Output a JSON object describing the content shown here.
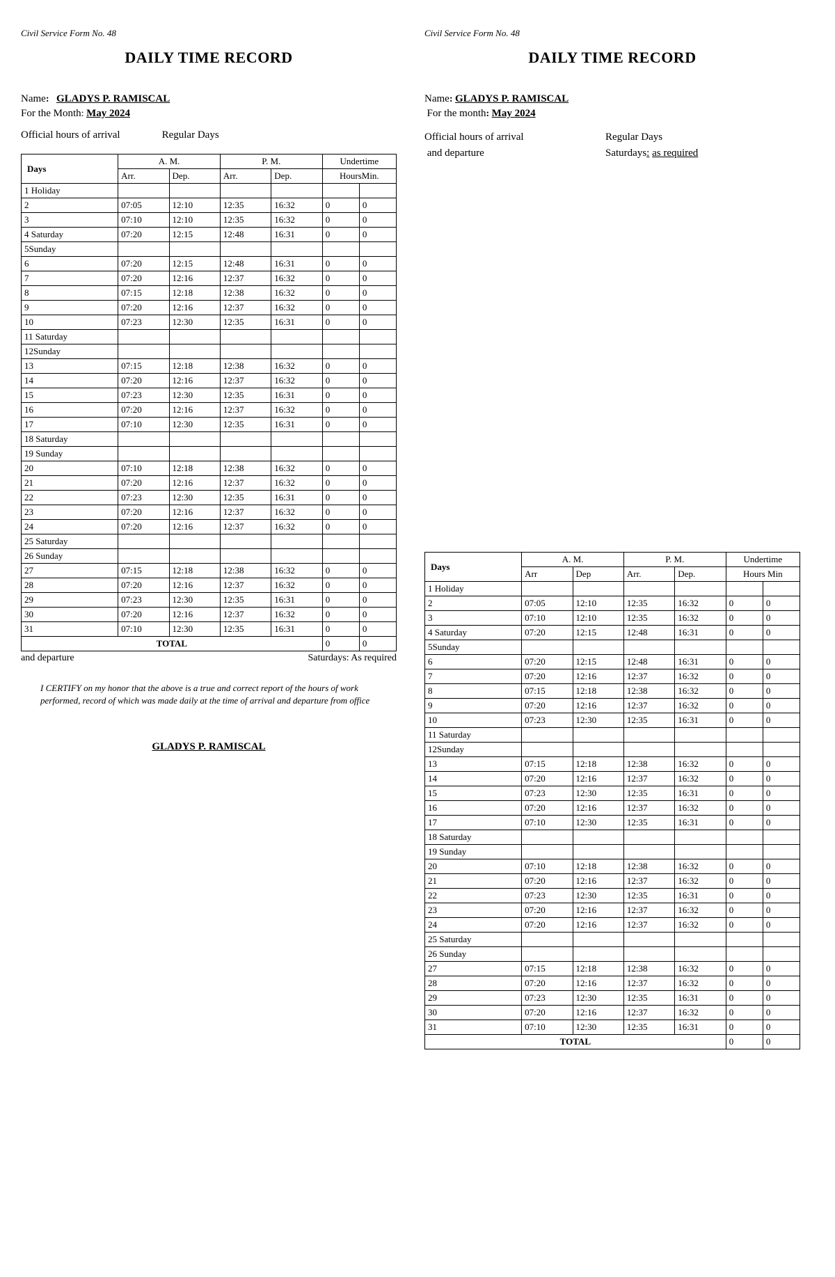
{
  "form_no": "Civil Service Form No. 48",
  "title": "DAILY TIME RECORD",
  "name_label": "Name",
  "name_value": "GLADYS P. RAMISCAL",
  "month_label_left": "For the Month",
  "month_label_right": "For the month",
  "month_value": "May 2024",
  "official_hours_left": "Official hours of arrival",
  "official_hours_right_l1": "Official hours of arrival",
  "official_hours_right_l2": "and departure",
  "regular_days": "Regular Days",
  "saturdays_label": "Saturdays",
  "saturdays_value": "as required",
  "and_departure": "and departure",
  "saturdays_as_required": "Saturdays: As required",
  "certify_text": "I CERTIFY on my honor that the above is a true and correct report of the hours of work performed, record of which was made daily at the time of arrival and departure from office",
  "signature_name": "GLADYS P. RAMISCAL",
  "headers": {
    "days": "Days",
    "am": "A. M.",
    "pm": "P. M.",
    "undertime": "Undertime",
    "arr": "Arr.",
    "dep": "Dep.",
    "arr2": "Arr",
    "dep2": "Dep",
    "hoursmin": "Hours Min",
    "hoursmin2": "HoursMin.",
    "total": "TOTAL"
  },
  "total_hours": "0",
  "total_min": "0",
  "rows": [
    {
      "day": "1 Holiday",
      "am_arr": "",
      "am_dep": "",
      "pm_arr": "",
      "pm_dep": "",
      "uh": "",
      "um": ""
    },
    {
      "day": "2",
      "am_arr": "07:05",
      "am_dep": "12:10",
      "pm_arr": "12:35",
      "pm_dep": "16:32",
      "uh": "0",
      "um": "0"
    },
    {
      "day": "3",
      "am_arr": "07:10",
      "am_dep": "12:10",
      "pm_arr": "12:35",
      "pm_dep": "16:32",
      "uh": "0",
      "um": "0"
    },
    {
      "day": "4 Saturday",
      "am_arr": "07:20",
      "am_dep": "12:15",
      "pm_arr": "12:48",
      "pm_dep": "16:31",
      "uh": "0",
      "um": "0"
    },
    {
      "day": "5Sunday",
      "am_arr": "",
      "am_dep": "",
      "pm_arr": "",
      "pm_dep": "",
      "uh": "",
      "um": ""
    },
    {
      "day": "6",
      "am_arr": "07:20",
      "am_dep": "12:15",
      "pm_arr": "12:48",
      "pm_dep": "16:31",
      "uh": "0",
      "um": "0"
    },
    {
      "day": "7",
      "am_arr": "07:20",
      "am_dep": "12:16",
      "pm_arr": "12:37",
      "pm_dep": "16:32",
      "uh": "0",
      "um": "0"
    },
    {
      "day": "8",
      "am_arr": "07:15",
      "am_dep": "12:18",
      "pm_arr": "12:38",
      "pm_dep": "16:32",
      "uh": "0",
      "um": "0"
    },
    {
      "day": "9",
      "am_arr": "07:20",
      "am_dep": "12:16",
      "pm_arr": "12:37",
      "pm_dep": "16:32",
      "uh": "0",
      "um": "0"
    },
    {
      "day": "10",
      "am_arr": "07:23",
      "am_dep": "12:30",
      "pm_arr": "12:35",
      "pm_dep": "16:31",
      "uh": "0",
      "um": "0"
    },
    {
      "day": "11 Saturday",
      "am_arr": "",
      "am_dep": "",
      "pm_arr": "",
      "pm_dep": "",
      "uh": "",
      "um": ""
    },
    {
      "day": "12Sunday",
      "am_arr": "",
      "am_dep": "",
      "pm_arr": "",
      "pm_dep": "",
      "uh": "",
      "um": ""
    },
    {
      "day": "13",
      "am_arr": "07:15",
      "am_dep": "12:18",
      "pm_arr": "12:38",
      "pm_dep": "16:32",
      "uh": "0",
      "um": "0"
    },
    {
      "day": "14",
      "am_arr": "07:20",
      "am_dep": "12:16",
      "pm_arr": "12:37",
      "pm_dep": "16:32",
      "uh": "0",
      "um": "0"
    },
    {
      "day": "15",
      "am_arr": "07:23",
      "am_dep": "12:30",
      "pm_arr": "12:35",
      "pm_dep": "16:31",
      "uh": "0",
      "um": "0"
    },
    {
      "day": "16",
      "am_arr": "07:20",
      "am_dep": "12:16",
      "pm_arr": "12:37",
      "pm_dep": "16:32",
      "uh": "0",
      "um": "0"
    },
    {
      "day": "17",
      "am_arr": "07:10",
      "am_dep": "12:30",
      "pm_arr": "12:35",
      "pm_dep": "16:31",
      "uh": "0",
      "um": "0"
    },
    {
      "day": "18 Saturday",
      "am_arr": "",
      "am_dep": "",
      "pm_arr": "",
      "pm_dep": "",
      "uh": "",
      "um": ""
    },
    {
      "day": "19 Sunday",
      "am_arr": "",
      "am_dep": "",
      "pm_arr": "",
      "pm_dep": "",
      "uh": "",
      "um": ""
    },
    {
      "day": "20",
      "am_arr": "07:10",
      "am_dep": "12:18",
      "pm_arr": "12:38",
      "pm_dep": "16:32",
      "uh": "0",
      "um": "0"
    },
    {
      "day": "21",
      "am_arr": "07:20",
      "am_dep": "12:16",
      "pm_arr": "12:37",
      "pm_dep": "16:32",
      "uh": "0",
      "um": "0"
    },
    {
      "day": "22",
      "am_arr": "07:23",
      "am_dep": "12:30",
      "pm_arr": "12:35",
      "pm_dep": "16:31",
      "uh": "0",
      "um": "0"
    },
    {
      "day": "23",
      "am_arr": "07:20",
      "am_dep": "12:16",
      "pm_arr": "12:37",
      "pm_dep": "16:32",
      "uh": "0",
      "um": "0"
    },
    {
      "day": "24",
      "am_arr": "07:20",
      "am_dep": "12:16",
      "pm_arr": "12:37",
      "pm_dep": "16:32",
      "uh": "0",
      "um": "0"
    },
    {
      "day": "25 Saturday",
      "am_arr": "",
      "am_dep": "",
      "pm_arr": "",
      "pm_dep": "",
      "uh": "",
      "um": ""
    },
    {
      "day": "26 Sunday",
      "am_arr": "",
      "am_dep": "",
      "pm_arr": "",
      "pm_dep": "",
      "uh": "",
      "um": ""
    },
    {
      "day": "27",
      "am_arr": "07:15",
      "am_dep": "12:18",
      "pm_arr": "12:38",
      "pm_dep": "16:32",
      "uh": "0",
      "um": "0"
    },
    {
      "day": "28",
      "am_arr": "07:20",
      "am_dep": "12:16",
      "pm_arr": "12:37",
      "pm_dep": "16:32",
      "uh": "0",
      "um": "0"
    },
    {
      "day": "29",
      "am_arr": "07:23",
      "am_dep": "12:30",
      "pm_arr": "12:35",
      "pm_dep": "16:31",
      "uh": "0",
      "um": "0"
    },
    {
      "day": "30",
      "am_arr": "07:20",
      "am_dep": "12:16",
      "pm_arr": "12:37",
      "pm_dep": "16:32",
      "uh": "0",
      "um": "0"
    },
    {
      "day": "31",
      "am_arr": "07:10",
      "am_dep": "12:30",
      "pm_arr": "12:35",
      "pm_dep": "16:31",
      "uh": "0",
      "um": "0"
    }
  ]
}
